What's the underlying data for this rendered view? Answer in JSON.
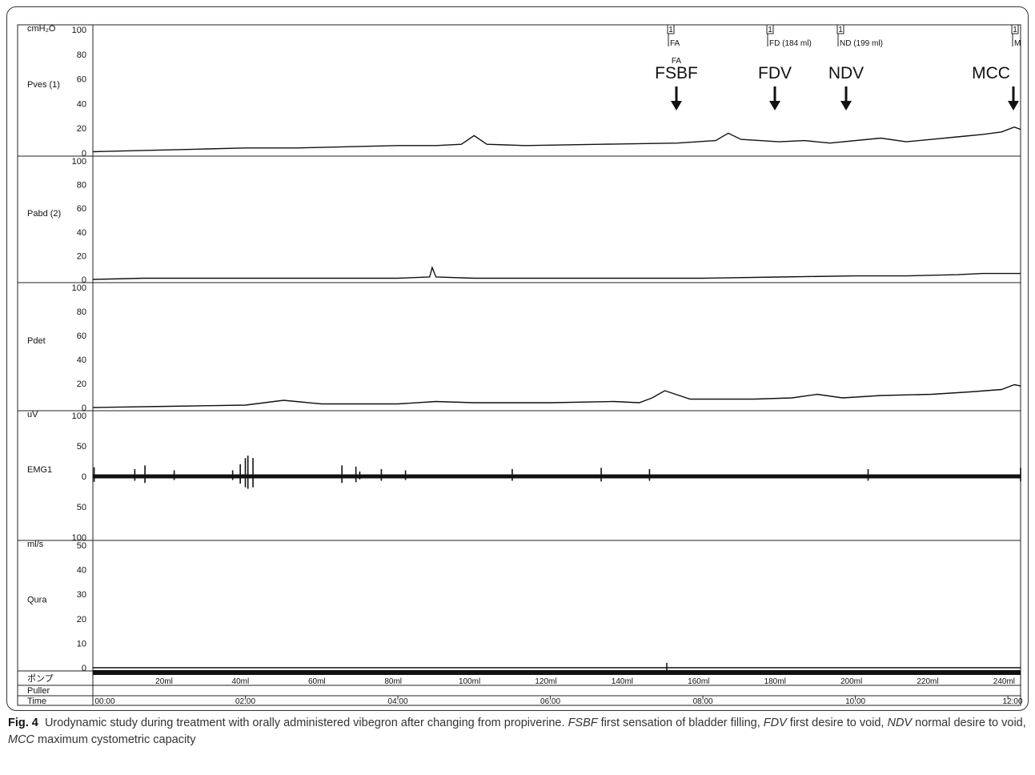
{
  "chart_data": {
    "type": "line",
    "x_axis": {
      "label": "Time",
      "ticks": [
        "00:00",
        "02:00",
        "04:00",
        "06:00",
        "08:00",
        "10:00",
        "12:00"
      ],
      "range_minutes": [
        0,
        730
      ]
    },
    "channels": [
      {
        "name": "Pves (1)",
        "unit": "cmH₂O",
        "ticks": [
          "100",
          "80",
          "60",
          "40",
          "20",
          "0"
        ],
        "ylim": [
          0,
          100
        ],
        "points": [
          [
            0,
            1
          ],
          [
            40,
            2
          ],
          [
            80,
            3
          ],
          [
            120,
            4
          ],
          [
            160,
            4
          ],
          [
            200,
            5
          ],
          [
            240,
            6
          ],
          [
            270,
            6
          ],
          [
            290,
            7
          ],
          [
            300,
            14
          ],
          [
            310,
            7
          ],
          [
            340,
            6
          ],
          [
            400,
            7
          ],
          [
            460,
            8
          ],
          [
            490,
            10
          ],
          [
            500,
            16
          ],
          [
            510,
            11
          ],
          [
            540,
            9
          ],
          [
            560,
            10
          ],
          [
            580,
            8
          ],
          [
            620,
            12
          ],
          [
            640,
            9
          ],
          [
            660,
            11
          ],
          [
            680,
            13
          ],
          [
            700,
            15
          ],
          [
            715,
            17
          ],
          [
            725,
            21
          ],
          [
            730,
            19
          ]
        ]
      },
      {
        "name": "Pabd (2)",
        "unit": "",
        "ticks": [
          "100",
          "80",
          "60",
          "40",
          "20",
          "0"
        ],
        "ylim": [
          0,
          100
        ],
        "points": [
          [
            0,
            0
          ],
          [
            40,
            1
          ],
          [
            80,
            1
          ],
          [
            120,
            1
          ],
          [
            160,
            1
          ],
          [
            200,
            1
          ],
          [
            240,
            1
          ],
          [
            265,
            2
          ],
          [
            267,
            10
          ],
          [
            270,
            2
          ],
          [
            300,
            1
          ],
          [
            360,
            1
          ],
          [
            420,
            1
          ],
          [
            480,
            1
          ],
          [
            540,
            2
          ],
          [
            600,
            3
          ],
          [
            640,
            3
          ],
          [
            680,
            4
          ],
          [
            700,
            5
          ],
          [
            730,
            5
          ]
        ]
      },
      {
        "name": "Pdet",
        "unit": "",
        "ticks": [
          "100",
          "80",
          "60",
          "40",
          "20",
          "0"
        ],
        "ylim": [
          0,
          100
        ],
        "points": [
          [
            0,
            0
          ],
          [
            60,
            1
          ],
          [
            120,
            2
          ],
          [
            150,
            6
          ],
          [
            180,
            3
          ],
          [
            240,
            3
          ],
          [
            270,
            5
          ],
          [
            300,
            4
          ],
          [
            360,
            4
          ],
          [
            410,
            5
          ],
          [
            430,
            4
          ],
          [
            440,
            8
          ],
          [
            450,
            14
          ],
          [
            470,
            7
          ],
          [
            520,
            7
          ],
          [
            550,
            8
          ],
          [
            570,
            11
          ],
          [
            590,
            8
          ],
          [
            620,
            10
          ],
          [
            660,
            11
          ],
          [
            690,
            13
          ],
          [
            715,
            15
          ],
          [
            725,
            19
          ],
          [
            730,
            18
          ]
        ]
      },
      {
        "name": "EMG1",
        "unit": "uV",
        "ticks": [
          "100",
          "50",
          "0",
          "50",
          "100"
        ],
        "ylim": [
          -100,
          100
        ],
        "spikes": [
          [
            1,
            15
          ],
          [
            33,
            12
          ],
          [
            41,
            18
          ],
          [
            64,
            10
          ],
          [
            110,
            10
          ],
          [
            116,
            20
          ],
          [
            120,
            30
          ],
          [
            122,
            34
          ],
          [
            126,
            -30
          ],
          [
            196,
            18
          ],
          [
            207,
            16
          ],
          [
            210,
            -8
          ],
          [
            227,
            12
          ],
          [
            246,
            10
          ],
          [
            330,
            12
          ],
          [
            400,
            14
          ],
          [
            438,
            12
          ],
          [
            610,
            12
          ],
          [
            730,
            14
          ]
        ]
      },
      {
        "name": "Qura",
        "unit": "ml/s",
        "ticks": [
          "50",
          "40",
          "30",
          "20",
          "10",
          "0"
        ],
        "ylim": [
          0,
          50
        ],
        "points": [
          [
            0,
            0
          ],
          [
            730,
            0
          ]
        ]
      }
    ],
    "pump": {
      "label": "ポンプ",
      "volume_ticks": [
        "20ml",
        "40ml",
        "60ml",
        "80ml",
        "100ml",
        "120ml",
        "140ml",
        "160ml",
        "180ml",
        "200ml",
        "220ml",
        "240ml"
      ]
    },
    "puller_label": "Puller",
    "event_markers": [
      {
        "code": "FA",
        "text": "FA"
      },
      {
        "code": "FD",
        "text": "FD (184 ml)"
      },
      {
        "code": "ND",
        "text": "ND (199 ml)"
      },
      {
        "code": "MCC",
        "text": "M"
      }
    ],
    "event_flag_label": "1",
    "annotations": [
      {
        "label": "FSBF",
        "superscript": "FA"
      },
      {
        "label": "FDV",
        "superscript": ""
      },
      {
        "label": "NDV",
        "superscript": ""
      },
      {
        "label": "MCC",
        "superscript": ""
      }
    ],
    "trace_color": "#111111"
  },
  "caption": {
    "fig_label": "Fig. 4",
    "text": "Urodynamic study during treatment with orally administered vibegron after changing from propiverine.",
    "abbreviations": [
      {
        "abbr": "FSBF",
        "meaning": "first sensation of bladder filling,"
      },
      {
        "abbr": "FDV",
        "meaning": "first desire to void,"
      },
      {
        "abbr": "NDV",
        "meaning": "normal desire to void,"
      },
      {
        "abbr": "MCC",
        "meaning": "maximum cystometric capacity"
      }
    ]
  }
}
